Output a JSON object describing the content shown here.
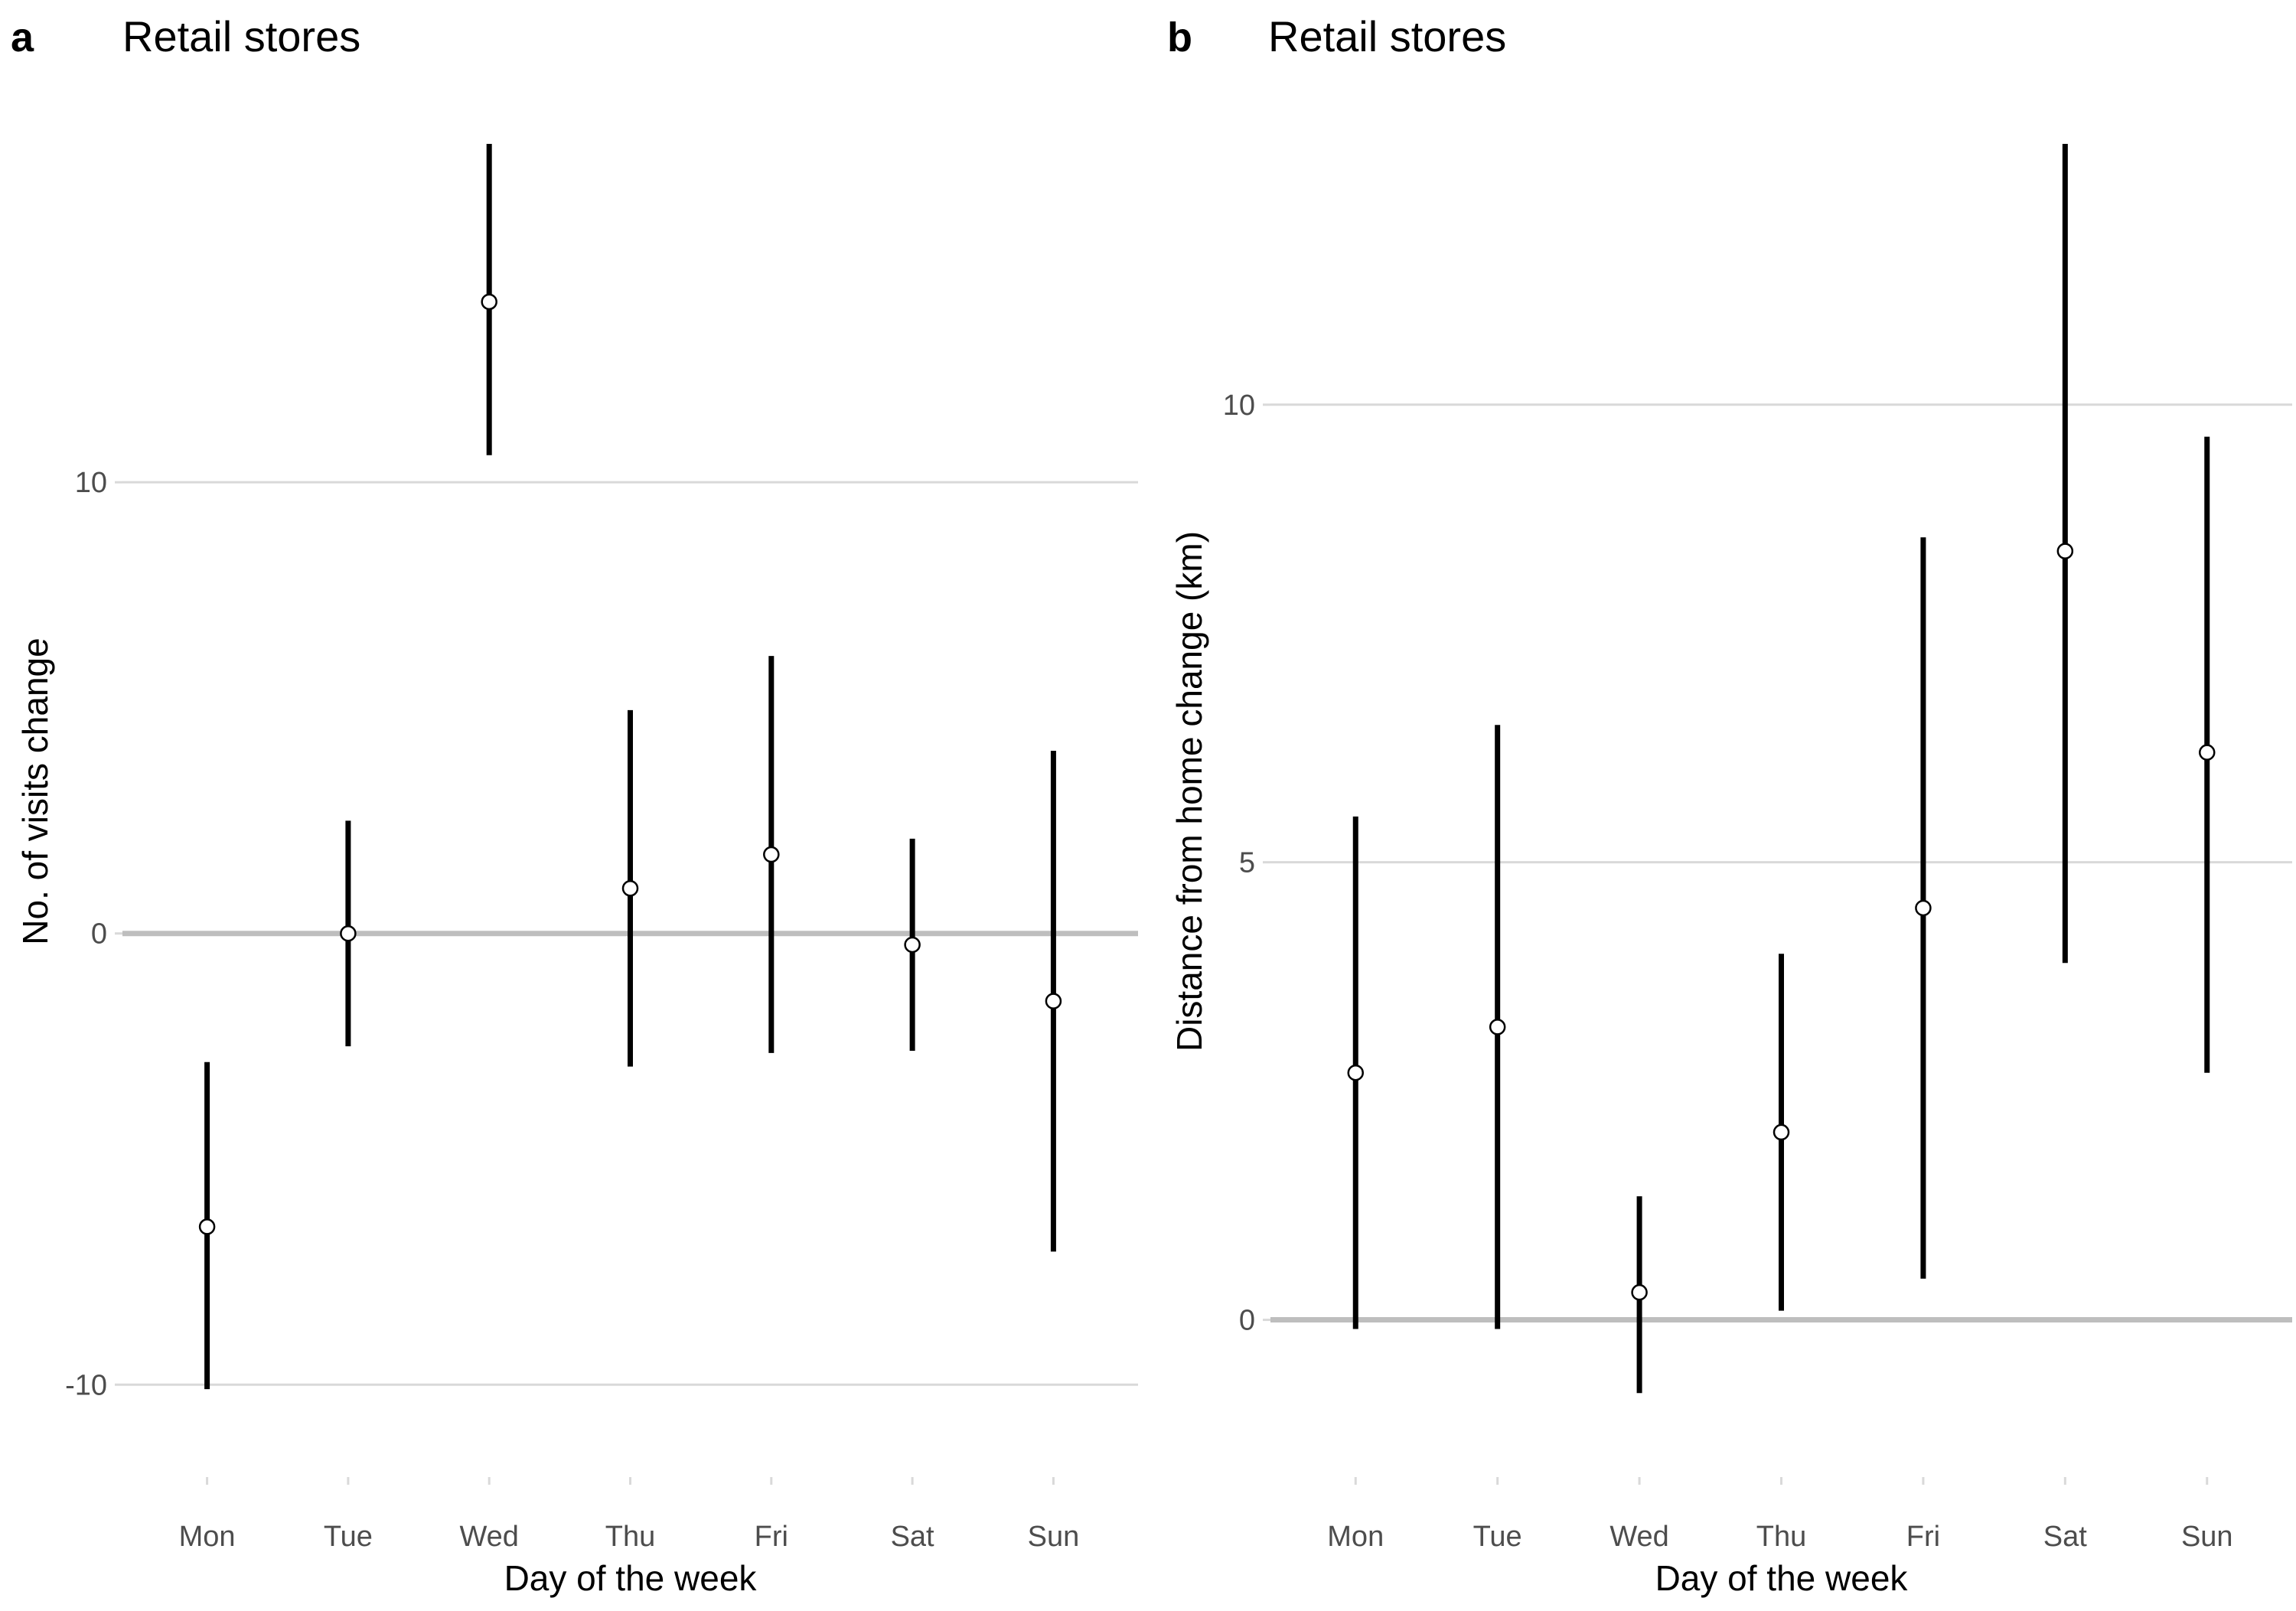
{
  "colors": {
    "background": "#ffffff",
    "gridline": "#d9d9d9",
    "zero_line": "#bebebe",
    "error_bar": "#000000",
    "point_fill": "#ffffff",
    "point_stroke": "#000000",
    "tick_text": "#4d4d4d",
    "text": "#000000"
  },
  "chart_data": [
    {
      "type": "scatter",
      "panel_label": "a",
      "title": "Retail stores",
      "xlabel": "Day of the week",
      "ylabel": "No. of visits change",
      "categories": [
        "Mon",
        "Tue",
        "Wed",
        "Thu",
        "Fri",
        "Sat",
        "Sun"
      ],
      "yticks": [
        -10,
        0,
        10
      ],
      "ylim": [
        -11.2,
        17.5
      ],
      "grid": "horizontal major only",
      "reference_line": 0,
      "series": [
        {
          "estimate": [
            -6.5,
            0.0,
            14.0,
            1.0,
            1.75,
            -0.25,
            -1.5
          ],
          "lower": [
            -10.1,
            -2.5,
            10.6,
            -2.95,
            -2.65,
            -2.6,
            -7.05
          ],
          "upper": [
            -2.85,
            2.5,
            17.5,
            4.95,
            6.15,
            2.1,
            4.05
          ]
        }
      ]
    },
    {
      "type": "scatter",
      "panel_label": "b",
      "title": "Retail stores",
      "xlabel": "Day of the week",
      "ylabel": "Distance from home change (km)",
      "categories": [
        "Mon",
        "Tue",
        "Wed",
        "Thu",
        "Fri",
        "Sat",
        "Sun"
      ],
      "yticks": [
        0,
        5,
        10
      ],
      "ylim": [
        -1.3,
        12.85
      ],
      "grid": "horizontal major only",
      "reference_line": 0,
      "series": [
        {
          "estimate": [
            2.7,
            3.2,
            0.3,
            2.05,
            4.5,
            8.4,
            6.2
          ],
          "lower": [
            -0.1,
            -0.1,
            -0.8,
            0.1,
            0.45,
            3.9,
            2.7
          ],
          "upper": [
            5.5,
            6.5,
            1.35,
            4.0,
            8.55,
            12.85,
            9.65
          ]
        }
      ]
    }
  ]
}
